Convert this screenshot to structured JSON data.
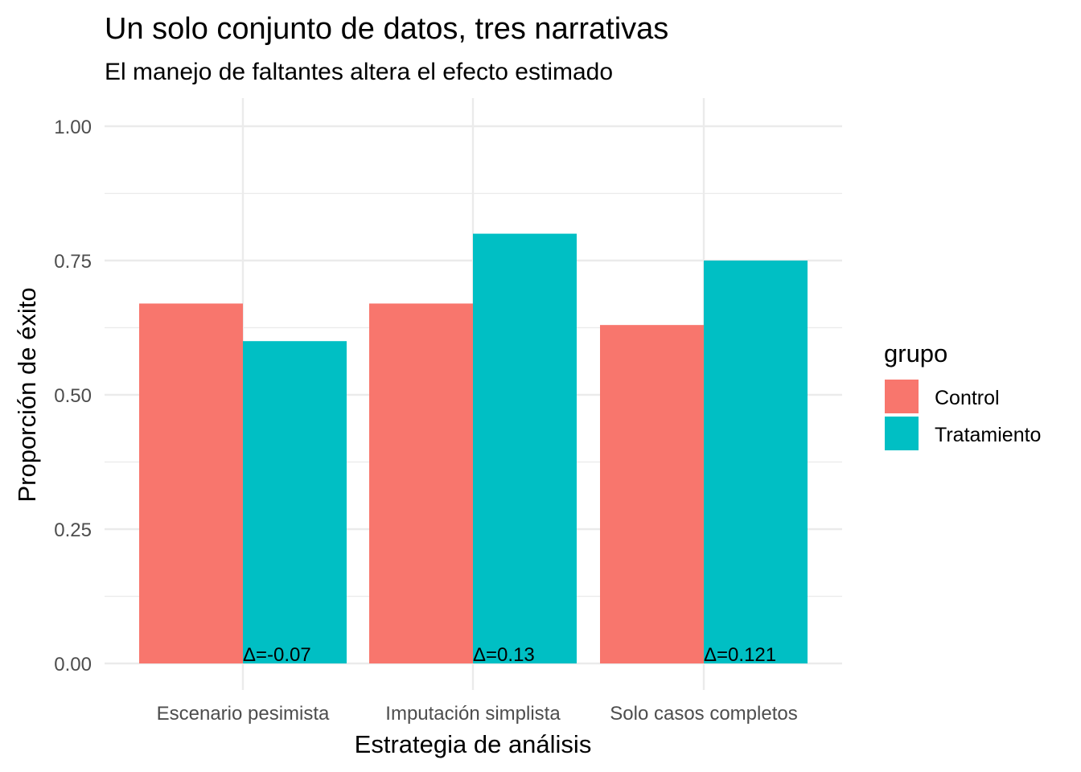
{
  "chart_data": {
    "type": "bar",
    "title": "Un solo conjunto de datos, tres narrativas",
    "subtitle": "El manejo de faltantes altera el efecto estimado",
    "xlabel": "Estrategia de análisis",
    "ylabel": "Proporción de éxito",
    "categories": [
      "Escenario pesimista",
      "Imputación simplista",
      "Solo casos completos"
    ],
    "series": [
      {
        "name": "Control",
        "color": "#F8766D",
        "values": [
          0.67,
          0.67,
          0.63
        ]
      },
      {
        "name": "Tratamiento",
        "color": "#00BFC4",
        "values": [
          0.6,
          0.8,
          0.75
        ]
      }
    ],
    "annotations": [
      "Δ=-0.07",
      "Δ=0.13",
      "Δ=0.121"
    ],
    "ylim": [
      0,
      1.0
    ],
    "yticks": [
      0,
      0.25,
      0.5,
      0.75,
      1.0
    ],
    "ytick_labels": [
      "0.00",
      "0.25",
      "0.50",
      "0.75",
      "1.00"
    ],
    "legend": {
      "title": "grupo",
      "position": "right"
    },
    "grid": true
  }
}
